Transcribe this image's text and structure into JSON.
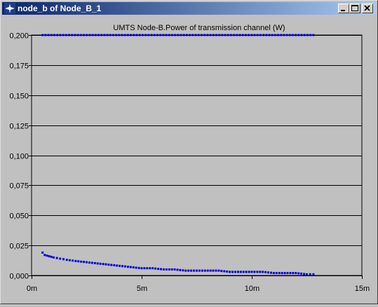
{
  "window": {
    "title": "node_b of Node_B_1",
    "icons": [
      "app-star-icon",
      "minimize-icon",
      "maximize-icon",
      "close-icon"
    ]
  },
  "chart_data": {
    "type": "scatter",
    "title": "UMTS Node-B.Power of transmission channel (W)",
    "xlabel": "",
    "ylabel": "",
    "xlim": [
      0,
      15
    ],
    "ylim": [
      0,
      0.2
    ],
    "x_unit": "m",
    "x_ticks": [
      "0m",
      "5m",
      "10m",
      "15m"
    ],
    "y_ticks": [
      "0,000",
      "0,025",
      "0,050",
      "0,075",
      "0,100",
      "0,125",
      "0,150",
      "0,175",
      "0,200"
    ],
    "grid": true,
    "series_color": "#0000e0",
    "series": [
      {
        "x": [
          0.5,
          12.8
        ],
        "y": [
          0.2,
          0.2
        ],
        "style": "dotted-constant"
      },
      {
        "x": [
          0.5,
          0.6,
          0.8,
          1.0,
          1.3,
          1.6,
          2.0,
          2.5,
          3.0,
          3.5,
          4.0,
          4.5,
          5.0,
          5.5,
          6.0,
          6.5,
          7.0,
          7.5,
          8.0,
          8.5,
          9.0,
          9.5,
          10.0,
          10.5,
          11.0,
          11.5,
          12.0,
          12.5,
          12.8
        ],
        "y": [
          0.019,
          0.017,
          0.016,
          0.015,
          0.014,
          0.013,
          0.012,
          0.011,
          0.01,
          0.009,
          0.008,
          0.007,
          0.006,
          0.006,
          0.005,
          0.005,
          0.004,
          0.004,
          0.004,
          0.004,
          0.003,
          0.003,
          0.003,
          0.003,
          0.002,
          0.002,
          0.002,
          0.001,
          0.001
        ],
        "style": "dotted-decay"
      }
    ]
  }
}
